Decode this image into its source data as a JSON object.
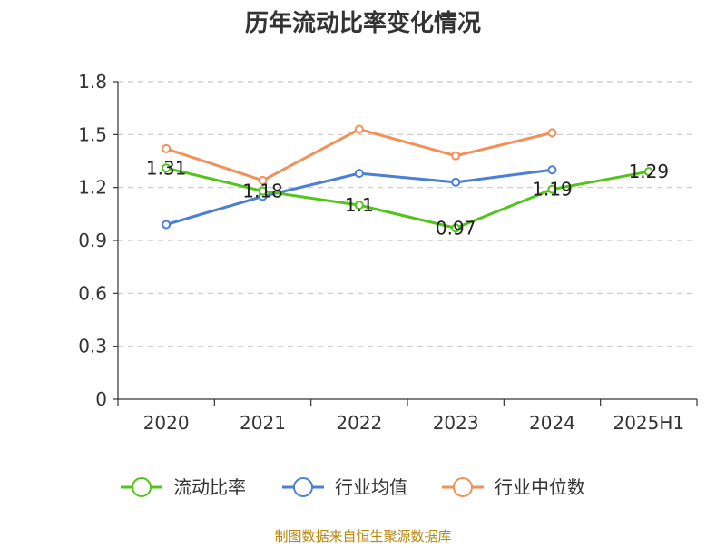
{
  "chart_data": {
    "type": "line",
    "title": "历年流动比率变化情况",
    "categories": [
      "2020",
      "2021",
      "2022",
      "2023",
      "2024",
      "2025H1"
    ],
    "ylim": [
      0,
      1.8
    ],
    "yticks": [
      "0",
      "0.3",
      "0.6",
      "0.9",
      "1.2",
      "1.5",
      "1.8"
    ],
    "ytick_values": [
      0,
      0.3,
      0.6,
      0.9,
      1.2,
      1.5,
      1.8
    ],
    "grid": true,
    "legend_position": "bottom",
    "series": [
      {
        "name": "流动比率",
        "color": "#52c41a",
        "values": [
          1.31,
          1.18,
          1.1,
          0.97,
          1.19,
          1.29
        ],
        "labels": [
          "1.31",
          "1.18",
          "1.1",
          "0.97",
          "1.19",
          "1.29"
        ]
      },
      {
        "name": "行业均值",
        "color": "#4a7fd9",
        "values": [
          0.99,
          1.15,
          1.28,
          1.23,
          1.3,
          null
        ]
      },
      {
        "name": "行业中位数",
        "color": "#f2905a",
        "values": [
          1.42,
          1.24,
          1.53,
          1.38,
          1.51,
          null
        ]
      }
    ]
  },
  "source": "制图数据来自恒生聚源数据库"
}
